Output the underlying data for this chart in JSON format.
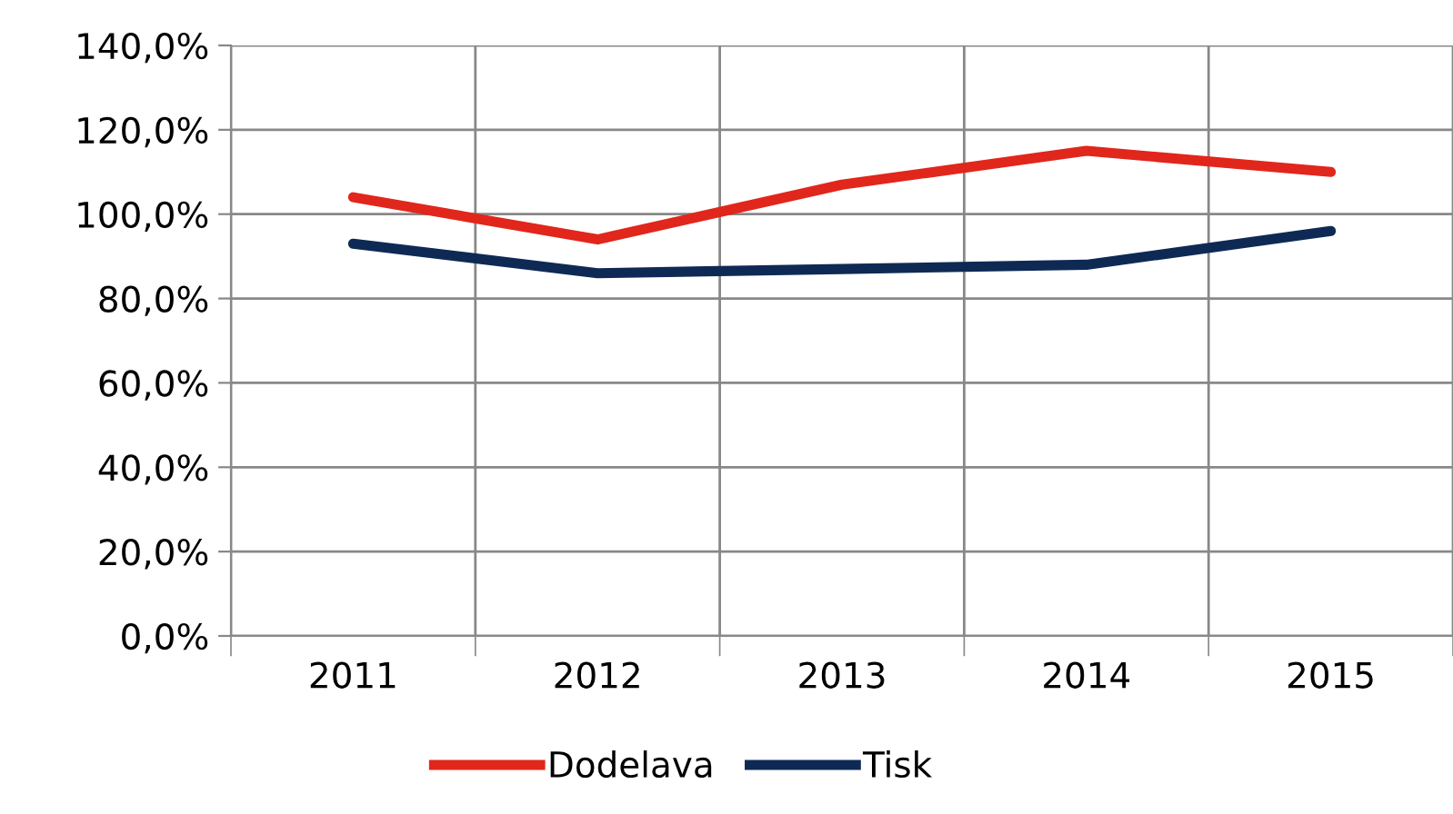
{
  "chart_data": {
    "type": "line",
    "categories": [
      "2011",
      "2012",
      "2013",
      "2014",
      "2015"
    ],
    "series": [
      {
        "name": "Dodelava",
        "color": "#e1261c",
        "values": [
          104,
          94,
          107,
          115,
          110
        ]
      },
      {
        "name": "Tisk",
        "color": "#0e2a54",
        "values": [
          93,
          86,
          87,
          88,
          96
        ]
      }
    ],
    "ylim": [
      0,
      140
    ],
    "yticks": [
      {
        "value": 0,
        "label": "0,0%"
      },
      {
        "value": 20,
        "label": "20,0%"
      },
      {
        "value": 40,
        "label": "40,0%"
      },
      {
        "value": 60,
        "label": "60,0%"
      },
      {
        "value": 80,
        "label": "80,0%"
      },
      {
        "value": 100,
        "label": "100,0%"
      },
      {
        "value": 120,
        "label": "120,0%"
      },
      {
        "value": 140,
        "label": "140,0%"
      }
    ],
    "grid": true,
    "legend": "bottom",
    "marker": "none",
    "line_style": "solid"
  }
}
